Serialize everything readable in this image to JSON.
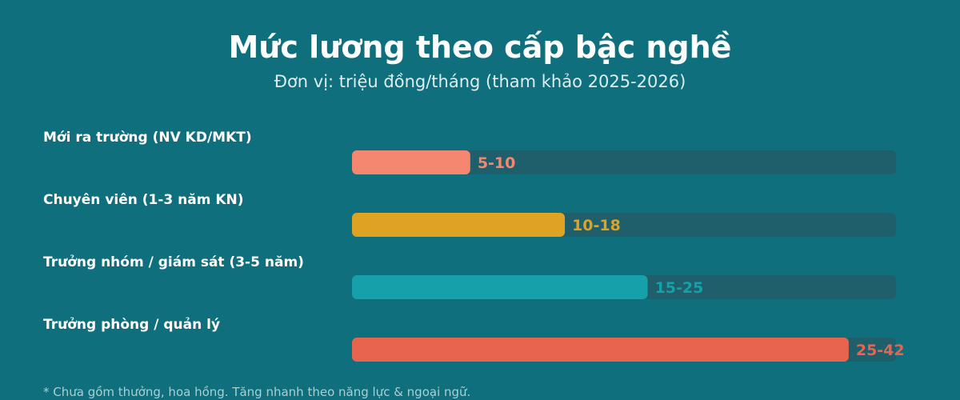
{
  "chart_data": {
    "type": "bar",
    "orientation": "horizontal",
    "title": "Mức lương theo cấp bậc nghề",
    "subtitle": "Đơn vị: triệu đồng/tháng (tham khảo 2025-2026)",
    "categories": [
      "Mới ra trường (NV KD/MKT)",
      "Chuyên viên (1-3 năm KN)",
      "Trưởng nhóm / giám sát (3-5 năm)",
      "Trưởng phòng / quản lý"
    ],
    "ranges": [
      [
        5,
        10
      ],
      [
        10,
        18
      ],
      [
        15,
        25
      ],
      [
        25,
        42
      ]
    ],
    "value_labels": [
      "5-10",
      "10-18",
      "15-25",
      "25-42"
    ],
    "colors": [
      "#f5866f",
      "#dea322",
      "#16a0a9",
      "#e8644f"
    ],
    "track_color": "#1f5f6b",
    "xlim": [
      0,
      46
    ],
    "grid": false,
    "legend": "none"
  },
  "footnote": "* Chưa gồm thưởng, hoa hồng. Tăng nhanh theo năng lực & ngoại ngữ."
}
